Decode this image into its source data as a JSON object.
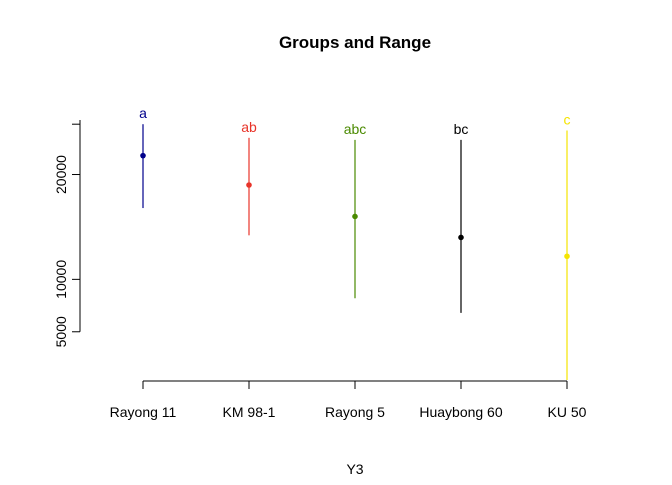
{
  "chart_data": {
    "type": "errorbar",
    "title": "Groups and Range",
    "xlabel": "Y3",
    "ylabel": "",
    "categories": [
      "Rayong 11",
      "KM 98-1",
      "Rayong 5",
      "Huaybong 60",
      "KU 50"
    ],
    "means": [
      21800,
      19000,
      16000,
      14000,
      12200
    ],
    "mins": [
      16800,
      14200,
      8200,
      6800,
      400
    ],
    "maxs": [
      24800,
      23500,
      23300,
      23300,
      24200
    ],
    "groups": [
      "a",
      "ab",
      "abc",
      "bc",
      "c"
    ],
    "colors": [
      "#00008B",
      "#E8342A",
      "#4A8A00",
      "#000000",
      "#F5E400"
    ],
    "yticks": [
      5000,
      10000,
      20000
    ],
    "ylim": [
      400,
      25200
    ],
    "grid": false
  }
}
